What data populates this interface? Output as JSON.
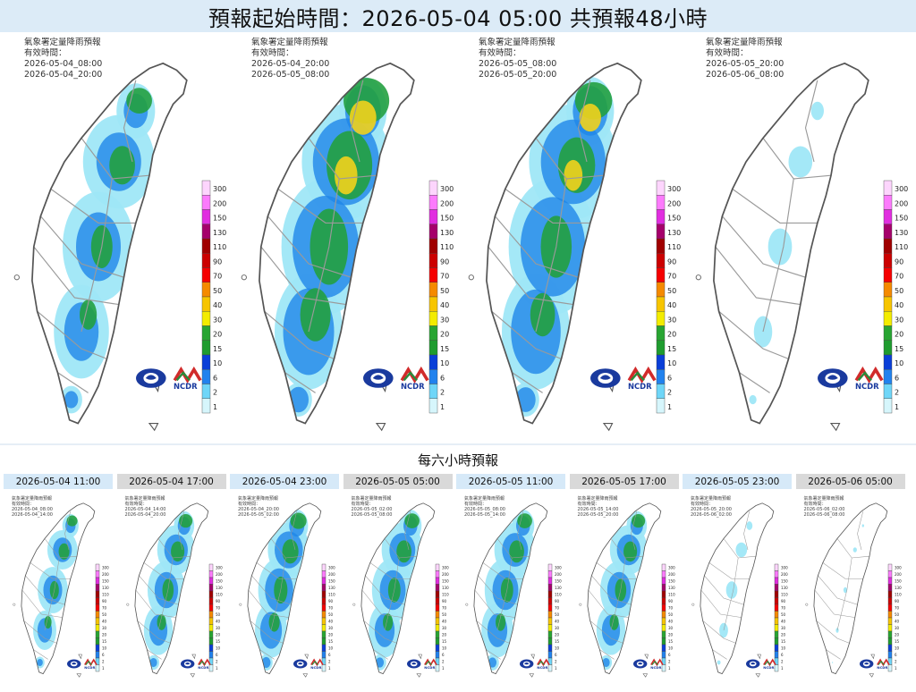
{
  "header": {
    "title": "預報起始時間：2026-05-04 05:00  共預報48小時"
  },
  "colors": {
    "header_bg": "#dcebf7",
    "map_outline": "#8a8a8a",
    "rain_1": "#9fe7f7",
    "rain_10": "#1f86e8",
    "rain_20": "#23a040",
    "rain_40": "#f2d21c"
  },
  "legend": {
    "levels": [
      "300",
      "200",
      "150",
      "130",
      "110",
      "90",
      "70",
      "50",
      "40",
      "30",
      "20",
      "15",
      "10",
      "6",
      "2",
      "1"
    ],
    "colors": [
      "#fdd5fd",
      "#fc7bfc",
      "#e12ee0",
      "#a5006b",
      "#a00000",
      "#cc0000",
      "#f50000",
      "#f58a00",
      "#f7c500",
      "#f3ec00",
      "#28a532",
      "#1f9c2f",
      "#0a3fd8",
      "#2182ee",
      "#6fd6f8",
      "#d6f6fc"
    ]
  },
  "logos": {
    "cwa": "cwa-logo",
    "ncdr": "NCDR"
  },
  "big_panels": [
    {
      "agency": "氣象署定量降雨預報",
      "valid_label": "有效時間：",
      "valid_from": "2026-05-04_08:00",
      "valid_to": "2026-05-04_20:00",
      "intensity": 0.45
    },
    {
      "agency": "氣象署定量降雨預報",
      "valid_label": "有效時間：",
      "valid_from": "2026-05-04_20:00",
      "valid_to": "2026-05-05_08:00",
      "intensity": 0.8
    },
    {
      "agency": "氣象署定量降雨預報",
      "valid_label": "有效時間：",
      "valid_from": "2026-05-05_08:00",
      "valid_to": "2026-05-05_20:00",
      "intensity": 0.65
    },
    {
      "agency": "氣象署定量降雨預報",
      "valid_label": "有效時間：",
      "valid_from": "2026-05-05_20:00",
      "valid_to": "2026-05-06_08:00",
      "intensity": 0.15
    }
  ],
  "section2": {
    "title": "每六小時預報"
  },
  "six_hour_panels": [
    {
      "time": "2026-05-04 11:00",
      "valid_from": "2026-05-04_08:00",
      "valid_to": "2026-05-04_14:00",
      "intensity": 0.4
    },
    {
      "time": "2026-05-04 17:00",
      "valid_from": "2026-05-04_14:00",
      "valid_to": "2026-05-04_20:00",
      "intensity": 0.5
    },
    {
      "time": "2026-05-04 23:00",
      "valid_from": "2026-05-04_20:00",
      "valid_to": "2026-05-05_02:00",
      "intensity": 0.6
    },
    {
      "time": "2026-05-05 05:00",
      "valid_from": "2026-05-05_02:00",
      "valid_to": "2026-05-05_08:00",
      "intensity": 0.55
    },
    {
      "time": "2026-05-05 11:00",
      "valid_from": "2026-05-05_08:00",
      "valid_to": "2026-05-05_14:00",
      "intensity": 0.55
    },
    {
      "time": "2026-05-05 17:00",
      "valid_from": "2026-05-05_14:00",
      "valid_to": "2026-05-05_20:00",
      "intensity": 0.5
    },
    {
      "time": "2026-05-05 23:00",
      "valid_from": "2026-05-05_20:00",
      "valid_to": "2026-05-06_02:00",
      "intensity": 0.15
    },
    {
      "time": "2026-05-06 05:00",
      "valid_from": "2026-05-06_02:00",
      "valid_to": "2026-05-06_08:00",
      "intensity": 0.05
    }
  ]
}
